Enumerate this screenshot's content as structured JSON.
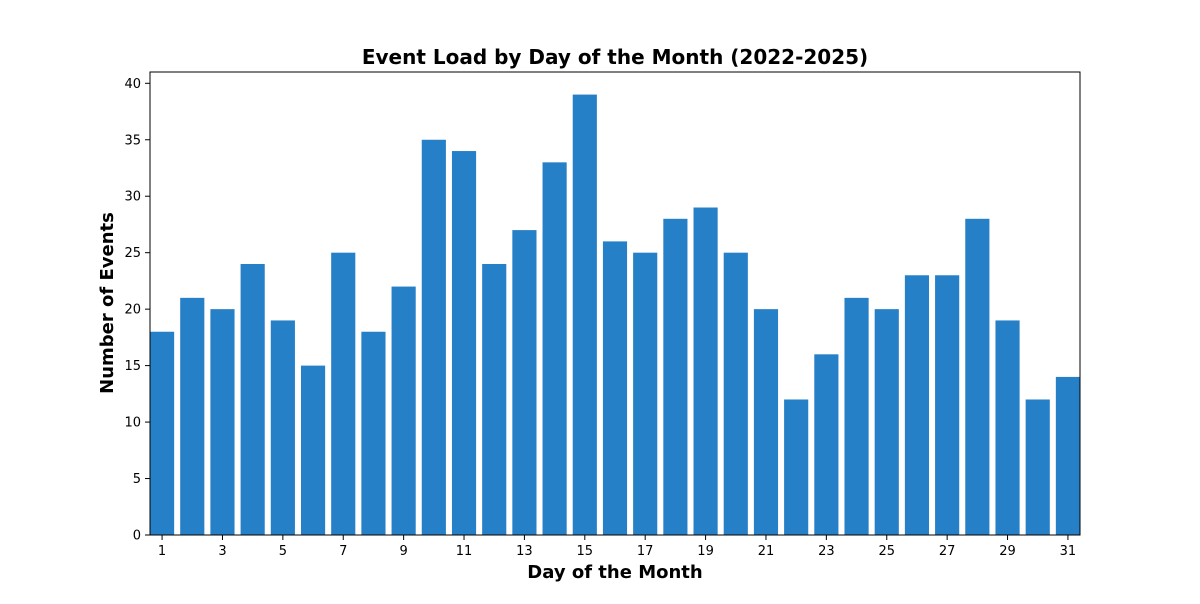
{
  "chart_data": {
    "type": "bar",
    "title": "Event Load by Day of the Month (2022-2025)",
    "xlabel": "Day of the Month",
    "ylabel": "Number of Events",
    "categories": [
      1,
      2,
      3,
      4,
      5,
      6,
      7,
      8,
      9,
      10,
      11,
      12,
      13,
      14,
      15,
      16,
      17,
      18,
      19,
      20,
      21,
      22,
      23,
      24,
      25,
      26,
      27,
      28,
      29,
      30,
      31
    ],
    "values": [
      18,
      21,
      20,
      24,
      19,
      15,
      25,
      18,
      22,
      35,
      34,
      24,
      27,
      33,
      39,
      26,
      25,
      28,
      29,
      25,
      20,
      12,
      16,
      21,
      20,
      23,
      23,
      28,
      19,
      12,
      14
    ],
    "xticks": [
      "1",
      "3",
      "5",
      "7",
      "9",
      "11",
      "13",
      "15",
      "17",
      "19",
      "21",
      "23",
      "25",
      "27",
      "29",
      "31"
    ],
    "yticks": [
      "0",
      "5",
      "10",
      "15",
      "20",
      "25",
      "30",
      "35",
      "40"
    ],
    "ylim": [
      0,
      41
    ],
    "bar_color": "#2680c8",
    "grid": false,
    "legend": false
  }
}
